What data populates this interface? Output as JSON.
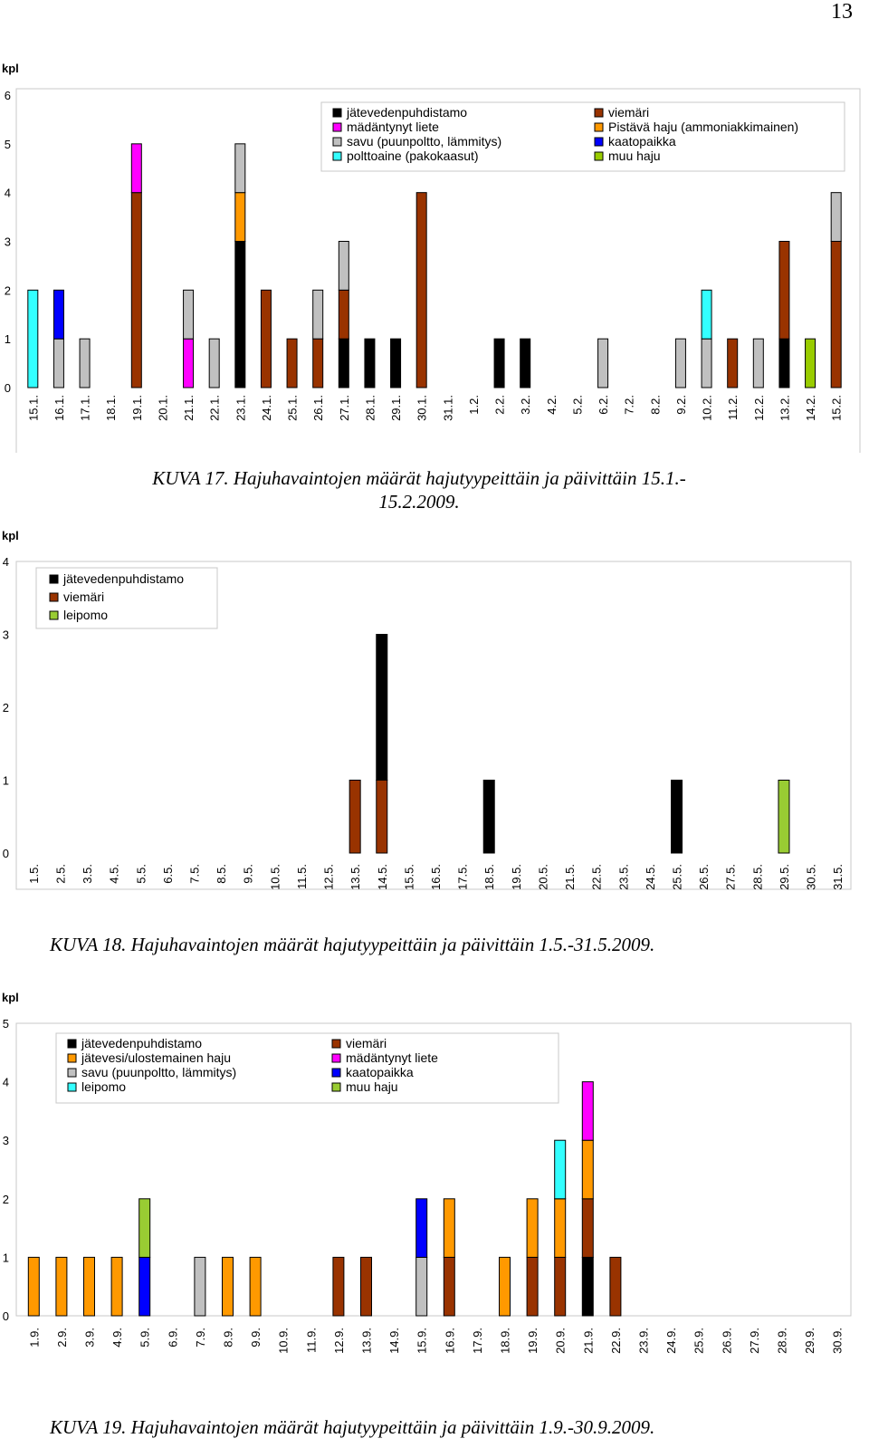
{
  "page_number": "13",
  "captions": {
    "kuva17": "KUVA 17. Hajuhavaintojen määrät hajutyypeittäin ja päivittäin 15.1.-\n15.2.2009.",
    "kuva18": "KUVA 18. Hajuhavaintojen määrät hajutyypeittäin ja päivittäin 1.5.-31.5.2009.",
    "kuva19": "KUVA 19. Hajuhavaintojen määrät hajutyypeittäin ja päivittäin 1.9.-30.9.2009."
  },
  "chart_data": [
    {
      "type": "bar",
      "stacked": true,
      "ylabel": "kpl",
      "ylim": [
        0,
        6
      ],
      "yticks": [
        0,
        1,
        2,
        3,
        4,
        5,
        6
      ],
      "grid": false,
      "legend_position": "top",
      "categories": [
        "15.1.",
        "16.1.",
        "17.1.",
        "18.1.",
        "19.1.",
        "20.1.",
        "21.1.",
        "22.1.",
        "23.1.",
        "24.1.",
        "25.1.",
        "26.1.",
        "27.1.",
        "28.1.",
        "29.1.",
        "30.1.",
        "31.1.",
        "1.2.",
        "2.2.",
        "3.2.",
        "4.2.",
        "5.2.",
        "6.2.",
        "7.2.",
        "8.2.",
        "9.2.",
        "10.2.",
        "11.2.",
        "12.2.",
        "13.2.",
        "14.2.",
        "15.2."
      ],
      "series": [
        {
          "name": "jätevedenpuhdistamo",
          "color": "#000000",
          "values": [
            0,
            0,
            0,
            0,
            0,
            0,
            0,
            0,
            3,
            0,
            0,
            0,
            1,
            1,
            1,
            0,
            0,
            0,
            1,
            1,
            0,
            0,
            0,
            0,
            0,
            0,
            0,
            0,
            0,
            1,
            0,
            0
          ]
        },
        {
          "name": "viemäri",
          "color": "#993300",
          "values": [
            0,
            0,
            0,
            0,
            4,
            0,
            0,
            0,
            0,
            2,
            1,
            1,
            1,
            0,
            0,
            4,
            0,
            0,
            0,
            0,
            0,
            0,
            0,
            0,
            0,
            0,
            0,
            1,
            0,
            2,
            0,
            3
          ]
        },
        {
          "name": "Pistävä haju (ammoniakkimainen)",
          "color": "#FF9900",
          "values": [
            0,
            0,
            0,
            0,
            0,
            0,
            0,
            0,
            1,
            0,
            0,
            0,
            0,
            0,
            0,
            0,
            0,
            0,
            0,
            0,
            0,
            0,
            0,
            0,
            0,
            0,
            0,
            0,
            0,
            0,
            0,
            0
          ]
        },
        {
          "name": "mädäntynyt liete",
          "color": "#FF00FF",
          "values": [
            0,
            0,
            0,
            0,
            1,
            0,
            1,
            0,
            0,
            0,
            0,
            0,
            0,
            0,
            0,
            0,
            0,
            0,
            0,
            0,
            0,
            0,
            0,
            0,
            0,
            0,
            0,
            0,
            0,
            0,
            0,
            0
          ]
        },
        {
          "name": "savu (puunpoltto, lämmitys)",
          "color": "#C0C0C0",
          "values": [
            0,
            1,
            1,
            0,
            0,
            0,
            1,
            1,
            1,
            0,
            0,
            1,
            1,
            0,
            0,
            0,
            0,
            0,
            0,
            0,
            0,
            0,
            1,
            0,
            0,
            1,
            1,
            0,
            1,
            0,
            0,
            1
          ]
        },
        {
          "name": "kaatopaikka",
          "color": "#0000FF",
          "values": [
            0,
            1,
            0,
            0,
            0,
            0,
            0,
            0,
            0,
            0,
            0,
            0,
            0,
            0,
            0,
            0,
            0,
            0,
            0,
            0,
            0,
            0,
            0,
            0,
            0,
            0,
            0,
            0,
            0,
            0,
            0,
            0
          ]
        },
        {
          "name": "polttoaine (pakokaasut)",
          "color": "#33FFFF",
          "values": [
            2,
            0,
            0,
            0,
            0,
            0,
            0,
            0,
            0,
            0,
            0,
            0,
            0,
            0,
            0,
            0,
            0,
            0,
            0,
            0,
            0,
            0,
            0,
            0,
            0,
            0,
            1,
            0,
            0,
            0,
            0,
            0
          ]
        },
        {
          "name": "muu haju",
          "color": "#99CC00",
          "values": [
            0,
            0,
            0,
            0,
            0,
            0,
            0,
            0,
            0,
            0,
            0,
            0,
            0,
            0,
            0,
            0,
            0,
            0,
            0,
            0,
            0,
            0,
            0,
            0,
            0,
            0,
            0,
            0,
            0,
            0,
            1,
            0
          ]
        }
      ],
      "legend": {
        "left": [
          "jätevedenpuhdistamo",
          "mädäntynyt liete",
          "savu (puunpoltto, lämmitys)",
          "polttoaine (pakokaasut)"
        ],
        "right": [
          "viemäri",
          "Pistävä haju (ammoniakkimainen)",
          "kaatopaikka",
          "muu haju"
        ]
      }
    },
    {
      "type": "bar",
      "stacked": true,
      "ylabel": "kpl",
      "ylim": [
        0,
        4
      ],
      "yticks": [
        0,
        1,
        2,
        3,
        4
      ],
      "grid": false,
      "legend_position": "top-left",
      "categories": [
        "1.5.",
        "2.5.",
        "3.5.",
        "4.5.",
        "5.5.",
        "6.5.",
        "7.5.",
        "8.5.",
        "9.5.",
        "10.5.",
        "11.5.",
        "12.5.",
        "13.5.",
        "14.5.",
        "15.5.",
        "16.5.",
        "17.5.",
        "18.5.",
        "19.5.",
        "20.5.",
        "21.5.",
        "22.5.",
        "23.5.",
        "24.5.",
        "25.5.",
        "26.5.",
        "27.5.",
        "28.5.",
        "29.5.",
        "30.5.",
        "31.5."
      ],
      "series": [
        {
          "name": "viemäri",
          "color": "#993300",
          "values": [
            0,
            0,
            0,
            0,
            0,
            0,
            0,
            0,
            0,
            0,
            0,
            0,
            1,
            1,
            0,
            0,
            0,
            0,
            0,
            0,
            0,
            0,
            0,
            0,
            0,
            0,
            0,
            0,
            0,
            0,
            0
          ]
        },
        {
          "name": "jätevedenpuhdistamo",
          "color": "#000000",
          "values": [
            0,
            0,
            0,
            0,
            0,
            0,
            0,
            0,
            0,
            0,
            0,
            0,
            0,
            2,
            0,
            0,
            0,
            1,
            0,
            0,
            0,
            0,
            0,
            0,
            1,
            0,
            0,
            0,
            0,
            0,
            0
          ]
        },
        {
          "name": "leipomo",
          "color": "#99CC33",
          "values": [
            0,
            0,
            0,
            0,
            0,
            0,
            0,
            0,
            0,
            0,
            0,
            0,
            0,
            0,
            0,
            0,
            0,
            0,
            0,
            0,
            0,
            0,
            0,
            0,
            0,
            0,
            0,
            0,
            1,
            0,
            0
          ]
        }
      ],
      "legend": {
        "left": [
          "jätevedenpuhdistamo",
          "viemäri",
          "leipomo"
        ],
        "right": []
      }
    },
    {
      "type": "bar",
      "stacked": true,
      "ylabel": "kpl",
      "ylim": [
        0,
        5
      ],
      "yticks": [
        0,
        1,
        2,
        3,
        4,
        5
      ],
      "grid": false,
      "legend_position": "top-left",
      "categories": [
        "1.9.",
        "2.9.",
        "3.9.",
        "4.9.",
        "5.9.",
        "6.9.",
        "7.9.",
        "8.9.",
        "9.9.",
        "10.9.",
        "11.9.",
        "12.9.",
        "13.9.",
        "14.9.",
        "15.9.",
        "16.9.",
        "17.9.",
        "18.9.",
        "19.9.",
        "20.9.",
        "21.9.",
        "22.9.",
        "23.9.",
        "24.9.",
        "25.9.",
        "26.9.",
        "27.9.",
        "28.9.",
        "29.9.",
        "30.9."
      ],
      "series": [
        {
          "name": "jätevedenpuhdistamo",
          "color": "#000000",
          "values": [
            0,
            0,
            0,
            0,
            0,
            0,
            0,
            0,
            0,
            0,
            0,
            0,
            0,
            0,
            0,
            0,
            0,
            0,
            0,
            0,
            1,
            0,
            0,
            0,
            0,
            0,
            0,
            0,
            0,
            0
          ]
        },
        {
          "name": "viemäri",
          "color": "#993300",
          "values": [
            0,
            0,
            0,
            0,
            0,
            0,
            0,
            0,
            0,
            0,
            0,
            1,
            1,
            0,
            0,
            1,
            0,
            0,
            1,
            1,
            1,
            1,
            0,
            0,
            0,
            0,
            0,
            0,
            0,
            0
          ]
        },
        {
          "name": "savu (puunpoltto, lämmitys)",
          "color": "#C0C0C0",
          "values": [
            0,
            0,
            0,
            0,
            0,
            0,
            1,
            0,
            0,
            0,
            0,
            0,
            0,
            0,
            1,
            0,
            0,
            0,
            0,
            0,
            0,
            0,
            0,
            0,
            0,
            0,
            0,
            0,
            0,
            0
          ]
        },
        {
          "name": "kaatopaikka",
          "color": "#0000FF",
          "values": [
            0,
            0,
            0,
            0,
            1,
            0,
            0,
            0,
            0,
            0,
            0,
            0,
            0,
            0,
            1,
            0,
            0,
            0,
            0,
            0,
            0,
            0,
            0,
            0,
            0,
            0,
            0,
            0,
            0,
            0
          ]
        },
        {
          "name": "jätevesi/ulostemainen haju",
          "color": "#FF9900",
          "values": [
            1,
            1,
            1,
            1,
            0,
            0,
            0,
            1,
            1,
            0,
            0,
            0,
            0,
            0,
            0,
            1,
            0,
            1,
            1,
            1,
            1,
            0,
            0,
            0,
            0,
            0,
            0,
            0,
            0,
            0
          ]
        },
        {
          "name": "leipomo",
          "color": "#33FFFF",
          "values": [
            0,
            0,
            0,
            0,
            0,
            0,
            0,
            0,
            0,
            0,
            0,
            0,
            0,
            0,
            0,
            0,
            0,
            0,
            0,
            1,
            0,
            0,
            0,
            0,
            0,
            0,
            0,
            0,
            0,
            0
          ]
        },
        {
          "name": "muu haju",
          "color": "#99CC33",
          "values": [
            0,
            0,
            0,
            0,
            1,
            0,
            0,
            0,
            0,
            0,
            0,
            0,
            0,
            0,
            0,
            0,
            0,
            0,
            0,
            0,
            0,
            0,
            0,
            0,
            0,
            0,
            0,
            0,
            0,
            0
          ]
        },
        {
          "name": "mädäntynyt liete",
          "color": "#FF00FF",
          "values": [
            0,
            0,
            0,
            0,
            0,
            0,
            0,
            0,
            0,
            0,
            0,
            0,
            0,
            0,
            0,
            0,
            0,
            0,
            0,
            0,
            1,
            0,
            0,
            0,
            0,
            0,
            0,
            0,
            0,
            0
          ]
        }
      ],
      "legend": {
        "left": [
          "jätevedenpuhdistamo",
          "jätevesi/ulostemainen haju",
          "savu (puunpoltto, lämmitys)",
          "leipomo"
        ],
        "right": [
          "viemäri",
          "mädäntynyt liete",
          "kaatopaikka",
          "muu haju"
        ]
      }
    }
  ]
}
